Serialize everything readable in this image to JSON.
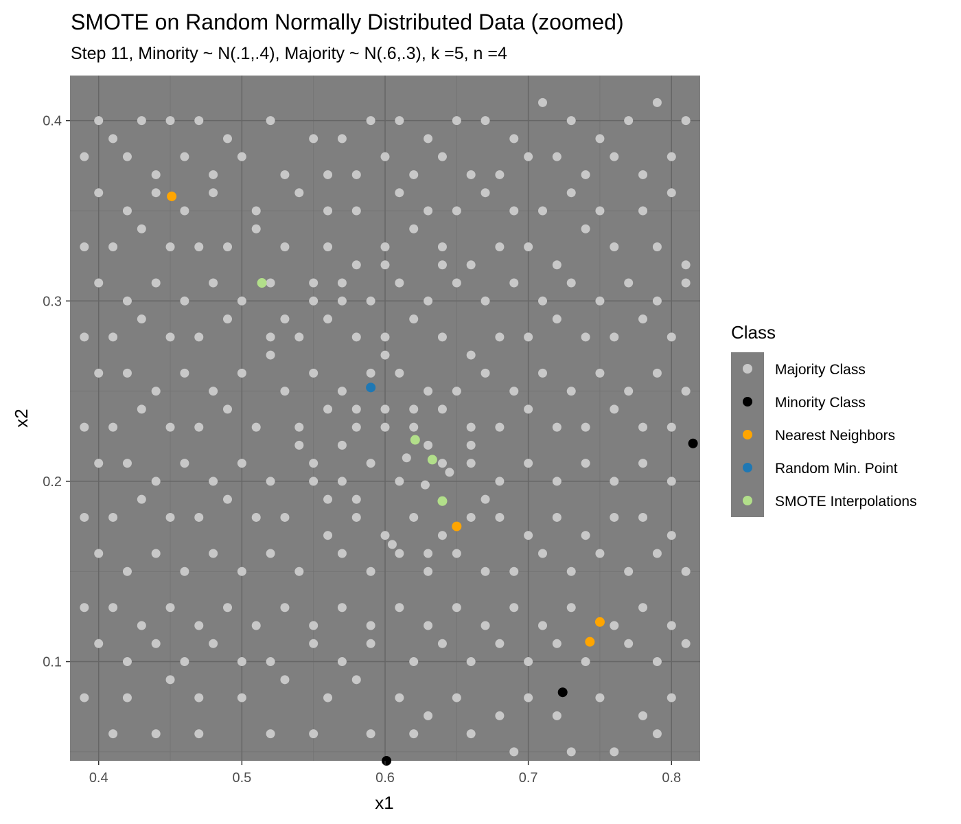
{
  "chart_data": {
    "type": "scatter",
    "title": "SMOTE on Random Normally Distributed Data (zoomed)",
    "subtitle": "Step 11, Minority ~ N(.1,.4), Majority ~ N(.6,.3), k =5, n =4",
    "xlabel": "x1",
    "ylabel": "x2",
    "xlim": [
      0.38,
      0.82
    ],
    "ylim": [
      0.045,
      0.425
    ],
    "x_ticks": [
      "0.4",
      "0.5",
      "0.6",
      "0.7",
      "0.8"
    ],
    "y_ticks": [
      "0.1",
      "0.2",
      "0.3",
      "0.4"
    ],
    "grid": true,
    "legend_position": "right",
    "legend": {
      "title": "Class",
      "entries": [
        {
          "label": "Majority Class",
          "color": "#c8c8c8"
        },
        {
          "label": "Minority Class",
          "color": "#000000"
        },
        {
          "label": "Nearest Neighbors",
          "color": "#ffa500"
        },
        {
          "label": "Random Min. Point",
          "color": "#1f78b4"
        },
        {
          "label": "SMOTE Interpolations",
          "color": "#b2df8a"
        }
      ]
    },
    "panel_background": "#7f7f7f",
    "majority_points": [
      [
        0.4,
        0.4
      ],
      [
        0.41,
        0.39
      ],
      [
        0.43,
        0.4
      ],
      [
        0.45,
        0.4
      ],
      [
        0.47,
        0.4
      ],
      [
        0.49,
        0.39
      ],
      [
        0.52,
        0.4
      ],
      [
        0.55,
        0.39
      ],
      [
        0.57,
        0.39
      ],
      [
        0.59,
        0.4
      ],
      [
        0.61,
        0.4
      ],
      [
        0.63,
        0.39
      ],
      [
        0.65,
        0.4
      ],
      [
        0.67,
        0.4
      ],
      [
        0.69,
        0.39
      ],
      [
        0.71,
        0.41
      ],
      [
        0.73,
        0.4
      ],
      [
        0.75,
        0.39
      ],
      [
        0.77,
        0.4
      ],
      [
        0.79,
        0.41
      ],
      [
        0.81,
        0.4
      ],
      [
        0.39,
        0.38
      ],
      [
        0.42,
        0.38
      ],
      [
        0.44,
        0.37
      ],
      [
        0.46,
        0.38
      ],
      [
        0.48,
        0.37
      ],
      [
        0.5,
        0.38
      ],
      [
        0.53,
        0.37
      ],
      [
        0.56,
        0.37
      ],
      [
        0.58,
        0.37
      ],
      [
        0.6,
        0.38
      ],
      [
        0.62,
        0.37
      ],
      [
        0.64,
        0.38
      ],
      [
        0.66,
        0.37
      ],
      [
        0.68,
        0.37
      ],
      [
        0.7,
        0.38
      ],
      [
        0.72,
        0.38
      ],
      [
        0.74,
        0.37
      ],
      [
        0.76,
        0.38
      ],
      [
        0.78,
        0.37
      ],
      [
        0.8,
        0.38
      ],
      [
        0.4,
        0.36
      ],
      [
        0.42,
        0.35
      ],
      [
        0.44,
        0.36
      ],
      [
        0.46,
        0.35
      ],
      [
        0.48,
        0.36
      ],
      [
        0.51,
        0.35
      ],
      [
        0.54,
        0.36
      ],
      [
        0.56,
        0.35
      ],
      [
        0.58,
        0.35
      ],
      [
        0.61,
        0.36
      ],
      [
        0.63,
        0.35
      ],
      [
        0.65,
        0.35
      ],
      [
        0.67,
        0.36
      ],
      [
        0.69,
        0.35
      ],
      [
        0.71,
        0.35
      ],
      [
        0.73,
        0.36
      ],
      [
        0.75,
        0.35
      ],
      [
        0.78,
        0.35
      ],
      [
        0.8,
        0.36
      ],
      [
        0.39,
        0.33
      ],
      [
        0.41,
        0.33
      ],
      [
        0.43,
        0.34
      ],
      [
        0.45,
        0.33
      ],
      [
        0.47,
        0.33
      ],
      [
        0.49,
        0.33
      ],
      [
        0.51,
        0.34
      ],
      [
        0.53,
        0.33
      ],
      [
        0.56,
        0.33
      ],
      [
        0.58,
        0.32
      ],
      [
        0.6,
        0.33
      ],
      [
        0.62,
        0.34
      ],
      [
        0.64,
        0.33
      ],
      [
        0.66,
        0.32
      ],
      [
        0.68,
        0.33
      ],
      [
        0.7,
        0.33
      ],
      [
        0.72,
        0.32
      ],
      [
        0.74,
        0.34
      ],
      [
        0.76,
        0.33
      ],
      [
        0.79,
        0.33
      ],
      [
        0.81,
        0.32
      ],
      [
        0.4,
        0.31
      ],
      [
        0.42,
        0.3
      ],
      [
        0.44,
        0.31
      ],
      [
        0.46,
        0.3
      ],
      [
        0.48,
        0.31
      ],
      [
        0.5,
        0.3
      ],
      [
        0.52,
        0.31
      ],
      [
        0.55,
        0.3
      ],
      [
        0.57,
        0.31
      ],
      [
        0.59,
        0.3
      ],
      [
        0.61,
        0.31
      ],
      [
        0.63,
        0.3
      ],
      [
        0.65,
        0.31
      ],
      [
        0.67,
        0.3
      ],
      [
        0.69,
        0.31
      ],
      [
        0.71,
        0.3
      ],
      [
        0.73,
        0.31
      ],
      [
        0.75,
        0.3
      ],
      [
        0.77,
        0.31
      ],
      [
        0.79,
        0.3
      ],
      [
        0.81,
        0.31
      ],
      [
        0.39,
        0.28
      ],
      [
        0.41,
        0.28
      ],
      [
        0.43,
        0.29
      ],
      [
        0.45,
        0.28
      ],
      [
        0.47,
        0.28
      ],
      [
        0.49,
        0.29
      ],
      [
        0.52,
        0.28
      ],
      [
        0.54,
        0.28
      ],
      [
        0.56,
        0.29
      ],
      [
        0.58,
        0.28
      ],
      [
        0.6,
        0.28
      ],
      [
        0.62,
        0.29
      ],
      [
        0.64,
        0.28
      ],
      [
        0.66,
        0.27
      ],
      [
        0.68,
        0.28
      ],
      [
        0.7,
        0.28
      ],
      [
        0.72,
        0.29
      ],
      [
        0.74,
        0.28
      ],
      [
        0.76,
        0.28
      ],
      [
        0.78,
        0.29
      ],
      [
        0.8,
        0.28
      ],
      [
        0.4,
        0.26
      ],
      [
        0.42,
        0.26
      ],
      [
        0.44,
        0.25
      ],
      [
        0.46,
        0.26
      ],
      [
        0.48,
        0.25
      ],
      [
        0.5,
        0.26
      ],
      [
        0.53,
        0.25
      ],
      [
        0.55,
        0.26
      ],
      [
        0.57,
        0.25
      ],
      [
        0.61,
        0.26
      ],
      [
        0.63,
        0.25
      ],
      [
        0.65,
        0.25
      ],
      [
        0.67,
        0.26
      ],
      [
        0.69,
        0.25
      ],
      [
        0.71,
        0.26
      ],
      [
        0.73,
        0.25
      ],
      [
        0.75,
        0.26
      ],
      [
        0.77,
        0.25
      ],
      [
        0.79,
        0.26
      ],
      [
        0.81,
        0.25
      ],
      [
        0.39,
        0.23
      ],
      [
        0.41,
        0.23
      ],
      [
        0.43,
        0.24
      ],
      [
        0.45,
        0.23
      ],
      [
        0.47,
        0.23
      ],
      [
        0.49,
        0.24
      ],
      [
        0.51,
        0.23
      ],
      [
        0.54,
        0.23
      ],
      [
        0.56,
        0.24
      ],
      [
        0.58,
        0.23
      ],
      [
        0.6,
        0.24
      ],
      [
        0.62,
        0.23
      ],
      [
        0.64,
        0.24
      ],
      [
        0.66,
        0.23
      ],
      [
        0.68,
        0.23
      ],
      [
        0.7,
        0.24
      ],
      [
        0.72,
        0.23
      ],
      [
        0.74,
        0.23
      ],
      [
        0.76,
        0.24
      ],
      [
        0.78,
        0.23
      ],
      [
        0.8,
        0.23
      ],
      [
        0.4,
        0.21
      ],
      [
        0.42,
        0.21
      ],
      [
        0.44,
        0.2
      ],
      [
        0.46,
        0.21
      ],
      [
        0.48,
        0.2
      ],
      [
        0.5,
        0.21
      ],
      [
        0.52,
        0.2
      ],
      [
        0.55,
        0.21
      ],
      [
        0.57,
        0.2
      ],
      [
        0.59,
        0.21
      ],
      [
        0.61,
        0.2
      ],
      [
        0.64,
        0.21
      ],
      [
        0.66,
        0.21
      ],
      [
        0.68,
        0.2
      ],
      [
        0.7,
        0.21
      ],
      [
        0.72,
        0.2
      ],
      [
        0.74,
        0.21
      ],
      [
        0.76,
        0.2
      ],
      [
        0.78,
        0.21
      ],
      [
        0.8,
        0.2
      ],
      [
        0.39,
        0.18
      ],
      [
        0.41,
        0.18
      ],
      [
        0.43,
        0.19
      ],
      [
        0.45,
        0.18
      ],
      [
        0.47,
        0.18
      ],
      [
        0.49,
        0.19
      ],
      [
        0.51,
        0.18
      ],
      [
        0.53,
        0.18
      ],
      [
        0.56,
        0.19
      ],
      [
        0.58,
        0.18
      ],
      [
        0.6,
        0.17
      ],
      [
        0.62,
        0.18
      ],
      [
        0.64,
        0.17
      ],
      [
        0.66,
        0.18
      ],
      [
        0.68,
        0.18
      ],
      [
        0.7,
        0.17
      ],
      [
        0.72,
        0.18
      ],
      [
        0.74,
        0.17
      ],
      [
        0.76,
        0.18
      ],
      [
        0.78,
        0.18
      ],
      [
        0.8,
        0.17
      ],
      [
        0.4,
        0.16
      ],
      [
        0.42,
        0.15
      ],
      [
        0.44,
        0.16
      ],
      [
        0.46,
        0.15
      ],
      [
        0.48,
        0.16
      ],
      [
        0.5,
        0.15
      ],
      [
        0.52,
        0.16
      ],
      [
        0.54,
        0.15
      ],
      [
        0.57,
        0.16
      ],
      [
        0.59,
        0.15
      ],
      [
        0.61,
        0.16
      ],
      [
        0.63,
        0.15
      ],
      [
        0.65,
        0.16
      ],
      [
        0.67,
        0.15
      ],
      [
        0.69,
        0.15
      ],
      [
        0.71,
        0.16
      ],
      [
        0.73,
        0.15
      ],
      [
        0.75,
        0.16
      ],
      [
        0.77,
        0.15
      ],
      [
        0.79,
        0.16
      ],
      [
        0.81,
        0.15
      ],
      [
        0.39,
        0.13
      ],
      [
        0.41,
        0.13
      ],
      [
        0.43,
        0.12
      ],
      [
        0.45,
        0.13
      ],
      [
        0.47,
        0.12
      ],
      [
        0.49,
        0.13
      ],
      [
        0.51,
        0.12
      ],
      [
        0.53,
        0.13
      ],
      [
        0.55,
        0.12
      ],
      [
        0.57,
        0.13
      ],
      [
        0.59,
        0.12
      ],
      [
        0.61,
        0.13
      ],
      [
        0.63,
        0.12
      ],
      [
        0.65,
        0.13
      ],
      [
        0.67,
        0.12
      ],
      [
        0.69,
        0.13
      ],
      [
        0.71,
        0.12
      ],
      [
        0.73,
        0.13
      ],
      [
        0.76,
        0.12
      ],
      [
        0.78,
        0.13
      ],
      [
        0.8,
        0.12
      ],
      [
        0.4,
        0.11
      ],
      [
        0.42,
        0.1
      ],
      [
        0.44,
        0.11
      ],
      [
        0.46,
        0.1
      ],
      [
        0.48,
        0.11
      ],
      [
        0.5,
        0.1
      ],
      [
        0.52,
        0.1
      ],
      [
        0.55,
        0.11
      ],
      [
        0.57,
        0.1
      ],
      [
        0.59,
        0.11
      ],
      [
        0.62,
        0.1
      ],
      [
        0.64,
        0.11
      ],
      [
        0.66,
        0.1
      ],
      [
        0.68,
        0.11
      ],
      [
        0.7,
        0.1
      ],
      [
        0.72,
        0.11
      ],
      [
        0.74,
        0.1
      ],
      [
        0.77,
        0.11
      ],
      [
        0.79,
        0.1
      ],
      [
        0.81,
        0.11
      ],
      [
        0.39,
        0.08
      ],
      [
        0.42,
        0.08
      ],
      [
        0.45,
        0.09
      ],
      [
        0.47,
        0.08
      ],
      [
        0.5,
        0.08
      ],
      [
        0.53,
        0.09
      ],
      [
        0.56,
        0.08
      ],
      [
        0.58,
        0.09
      ],
      [
        0.61,
        0.08
      ],
      [
        0.63,
        0.07
      ],
      [
        0.65,
        0.08
      ],
      [
        0.68,
        0.07
      ],
      [
        0.7,
        0.08
      ],
      [
        0.72,
        0.07
      ],
      [
        0.75,
        0.08
      ],
      [
        0.78,
        0.07
      ],
      [
        0.8,
        0.08
      ],
      [
        0.41,
        0.06
      ],
      [
        0.44,
        0.06
      ],
      [
        0.47,
        0.06
      ],
      [
        0.52,
        0.06
      ],
      [
        0.55,
        0.06
      ],
      [
        0.59,
        0.06
      ],
      [
        0.62,
        0.06
      ],
      [
        0.66,
        0.06
      ],
      [
        0.69,
        0.05
      ],
      [
        0.73,
        0.05
      ],
      [
        0.76,
        0.05
      ],
      [
        0.79,
        0.06
      ],
      [
        0.605,
        0.165
      ],
      [
        0.615,
        0.213
      ],
      [
        0.628,
        0.198
      ],
      [
        0.645,
        0.205
      ],
      [
        0.57,
        0.22
      ],
      [
        0.58,
        0.19
      ],
      [
        0.6,
        0.23
      ],
      [
        0.62,
        0.24
      ],
      [
        0.63,
        0.22
      ],
      [
        0.66,
        0.22
      ],
      [
        0.67,
        0.19
      ],
      [
        0.55,
        0.2
      ],
      [
        0.54,
        0.22
      ],
      [
        0.56,
        0.17
      ],
      [
        0.63,
        0.16
      ],
      [
        0.58,
        0.24
      ],
      [
        0.59,
        0.26
      ],
      [
        0.6,
        0.27
      ],
      [
        0.52,
        0.27
      ],
      [
        0.53,
        0.29
      ],
      [
        0.55,
        0.31
      ],
      [
        0.57,
        0.3
      ],
      [
        0.6,
        0.32
      ],
      [
        0.64,
        0.32
      ]
    ],
    "minority_points": [
      [
        0.601,
        0.045
      ],
      [
        0.724,
        0.083
      ],
      [
        0.815,
        0.221
      ]
    ],
    "nearest_neighbors": [
      [
        0.451,
        0.358
      ],
      [
        0.65,
        0.175
      ],
      [
        0.743,
        0.111
      ],
      [
        0.75,
        0.122
      ]
    ],
    "random_min_point": [
      [
        0.59,
        0.252
      ]
    ],
    "smote_interpolations": [
      [
        0.514,
        0.31
      ],
      [
        0.621,
        0.223
      ],
      [
        0.633,
        0.212
      ],
      [
        0.64,
        0.189
      ]
    ]
  }
}
